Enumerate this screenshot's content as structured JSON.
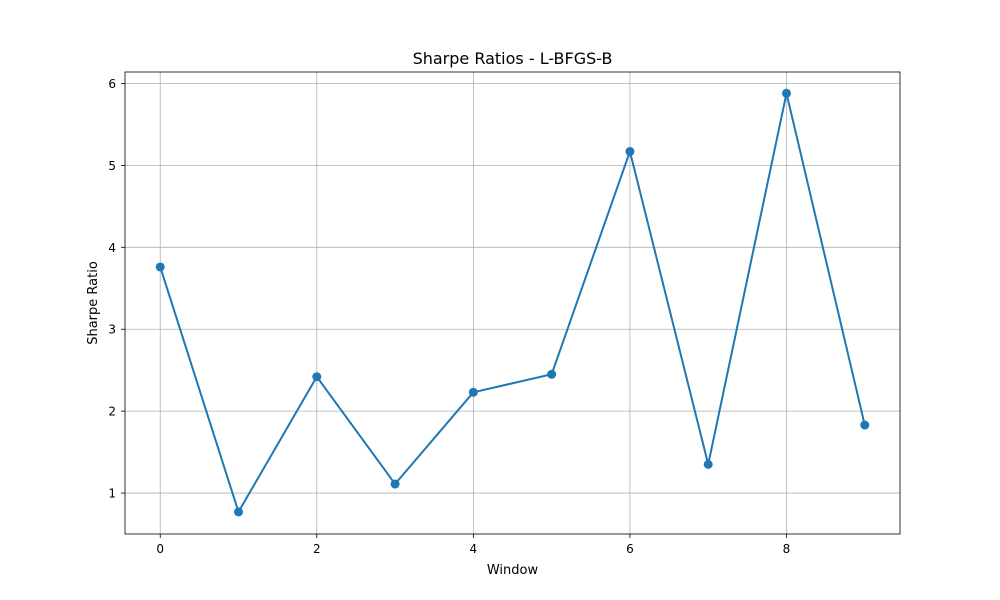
{
  "chart_data": {
    "type": "line",
    "title": "Sharpe Ratios - L-BFGS-B",
    "xlabel": "Window",
    "ylabel": "Sharpe Ratio",
    "x": [
      0,
      1,
      2,
      3,
      4,
      5,
      6,
      7,
      8,
      9
    ],
    "series": [
      {
        "values": [
          3.76,
          0.77,
          2.42,
          1.11,
          2.23,
          2.45,
          5.17,
          1.35,
          5.88,
          1.83
        ],
        "color": "#1f77b4",
        "marker": "circle"
      }
    ],
    "xlim": [
      -0.45,
      9.45
    ],
    "ylim": [
      0.5,
      6.14
    ],
    "xticks": [
      0,
      2,
      4,
      6,
      8
    ],
    "yticks": [
      1,
      2,
      3,
      4,
      5,
      6
    ],
    "grid": true,
    "legend": "none"
  }
}
